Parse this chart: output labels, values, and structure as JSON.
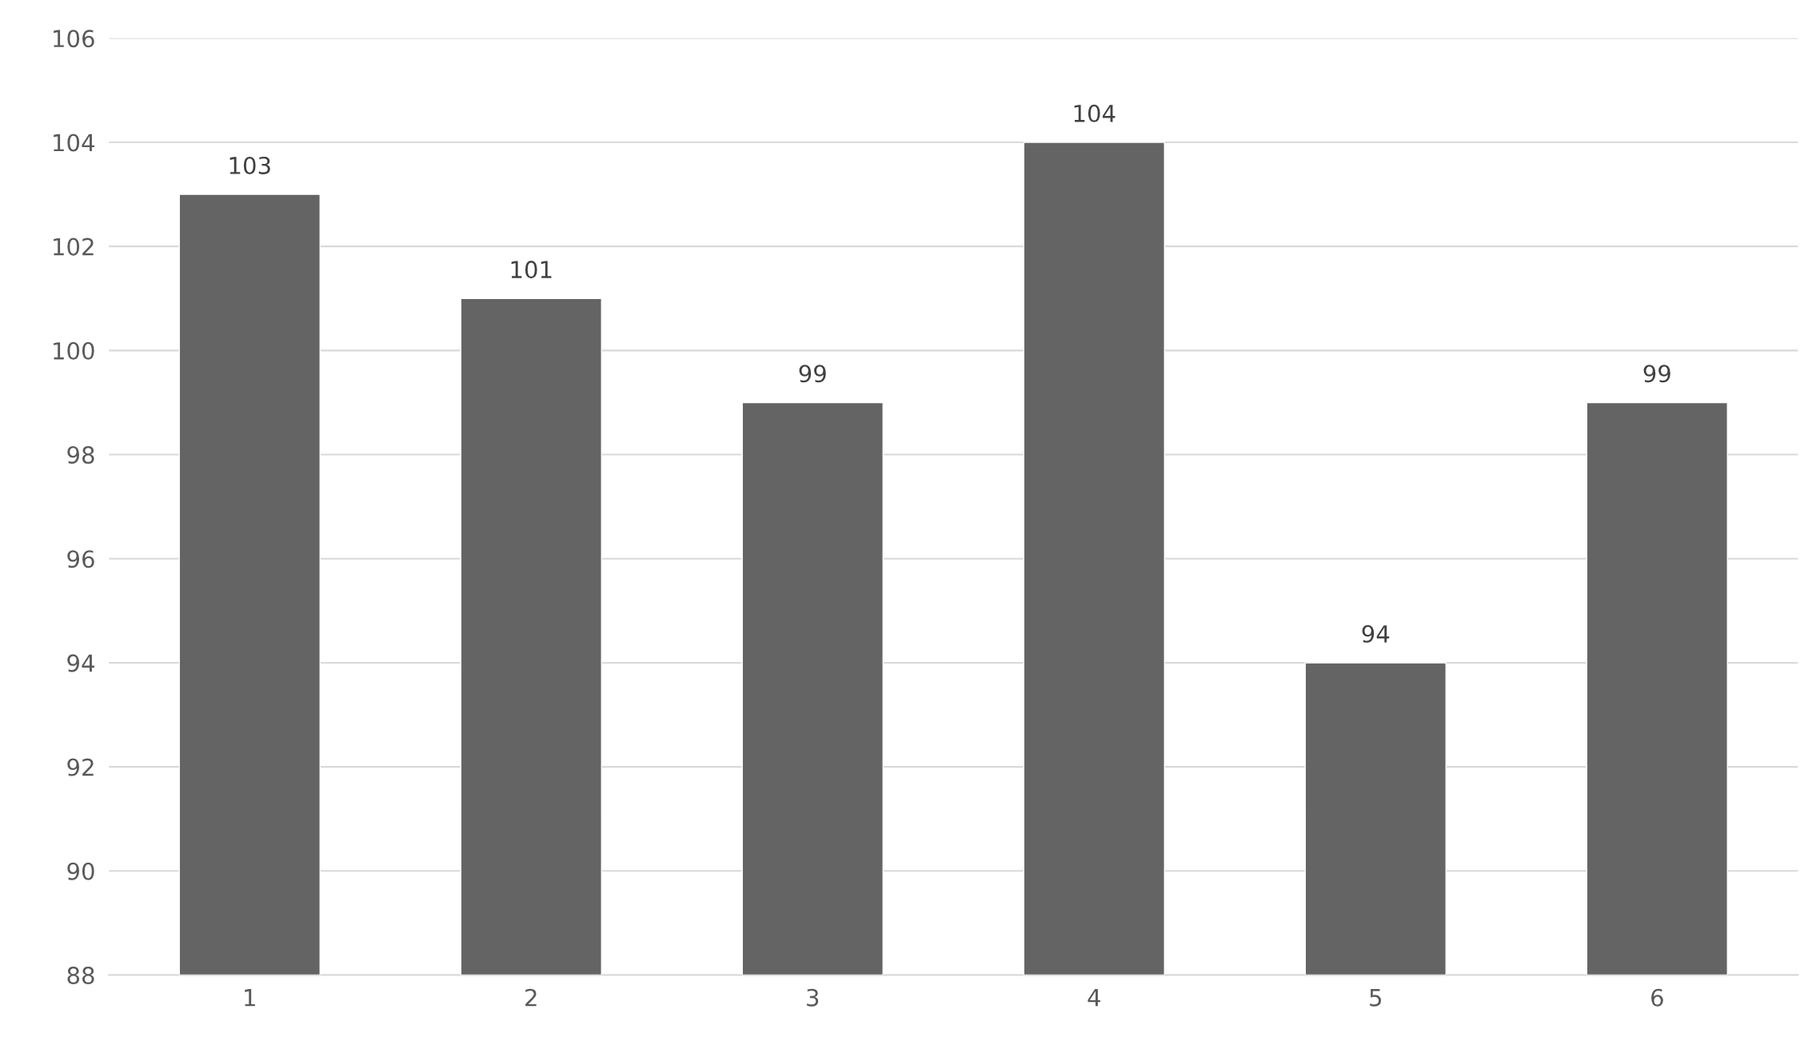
{
  "chart_data": {
    "type": "bar",
    "categories": [
      "1",
      "2",
      "3",
      "4",
      "5",
      "6"
    ],
    "values": [
      103,
      101,
      99,
      104,
      94,
      99
    ],
    "color": "#646464",
    "ylim": [
      88,
      106
    ],
    "yticks": [
      88,
      90,
      92,
      94,
      96,
      98,
      100,
      102,
      104,
      106
    ],
    "grid": "y",
    "data_labels": true
  }
}
